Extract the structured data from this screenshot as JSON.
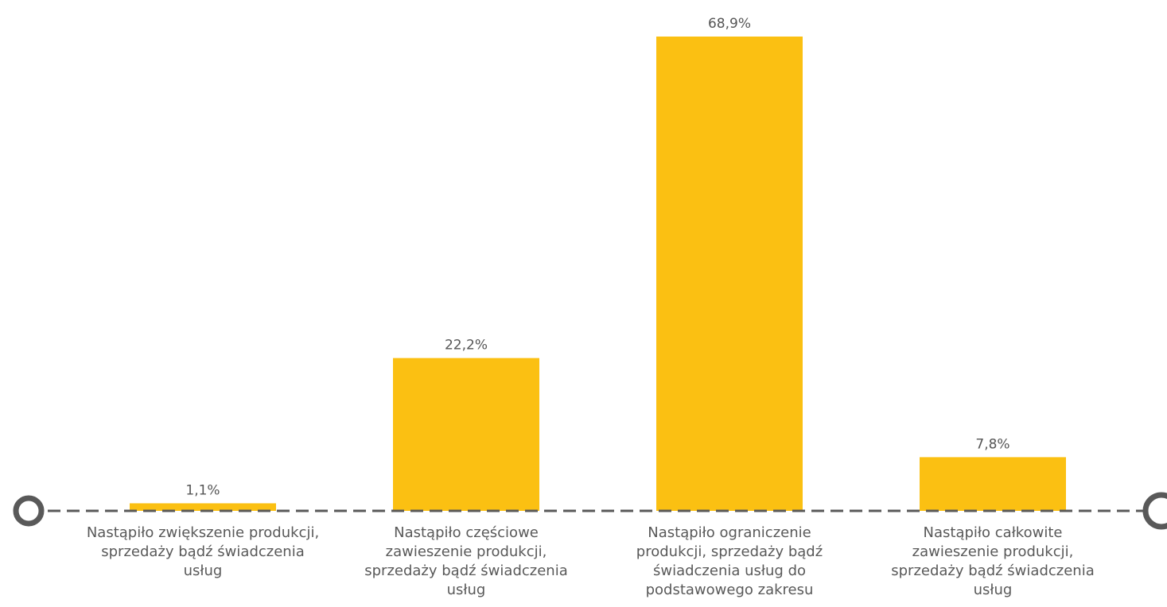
{
  "chart_data": {
    "type": "bar",
    "categories": [
      [
        "Nastąpiło zwiększenie produkcji,",
        "sprzedaży bądź świadczenia",
        "usług"
      ],
      [
        "Nastąpiło częściowe",
        "zawieszenie produkcji,",
        "sprzedaży bądź świadczenia",
        "usług"
      ],
      [
        "Nastąpiło ograniczenie",
        "produkcji, sprzedaży bądź",
        "świadczenia usług do",
        "podstawowego zakresu"
      ],
      [
        "Nastąpiło całkowite",
        "zawieszenie produkcji,",
        "sprzedaży bądź świadczenia",
        "usług"
      ]
    ],
    "values": [
      1.1,
      22.2,
      68.9,
      7.8
    ],
    "value_labels": [
      "1,1%",
      "22,2%",
      "68,9%",
      "7,8%"
    ],
    "unit": "%",
    "ylim": [
      0,
      70
    ],
    "grid": false,
    "legend": "none",
    "colors": {
      "bar": "#FBC012",
      "axis_line": "#595959",
      "axis_circle": "#595959"
    }
  }
}
